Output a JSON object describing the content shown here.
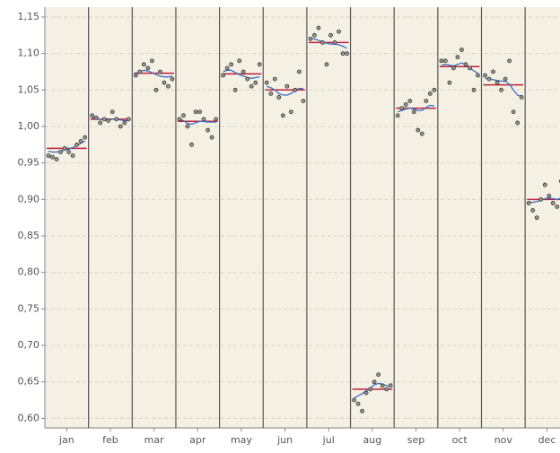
{
  "chart_data": {
    "type": "subseries",
    "categories": [
      "jan",
      "feb",
      "mar",
      "apr",
      "may",
      "jun",
      "jul",
      "aug",
      "sep",
      "oct",
      "nov",
      "dec"
    ],
    "ylim": [
      0.587,
      1.161
    ],
    "yticks": [
      {
        "value": 0.6,
        "label": "0,60"
      },
      {
        "value": 0.65,
        "label": "0,65"
      },
      {
        "value": 0.7,
        "label": "0,70"
      },
      {
        "value": 0.75,
        "label": "0,75"
      },
      {
        "value": 0.8,
        "label": "0,80"
      },
      {
        "value": 0.85,
        "label": "0,85"
      },
      {
        "value": 0.9,
        "label": "0,90"
      },
      {
        "value": 0.95,
        "label": "0,95"
      },
      {
        "value": 1.0,
        "label": "1,00"
      },
      {
        "value": 1.05,
        "label": "1,05"
      },
      {
        "value": 1.1,
        "label": "1,10"
      },
      {
        "value": 1.15,
        "label": "1,15"
      }
    ],
    "grid": true,
    "point_color": "#9a9a90",
    "mean_color": "#c0203a",
    "smooth_color": "#3a6fc8",
    "points": [
      [
        0.96,
        0.958,
        0.955,
        0.965,
        0.97,
        0.965,
        0.96,
        0.975,
        0.98,
        0.985
      ],
      [
        1.015,
        1.012,
        1.005,
        1.01,
        1.008,
        1.02,
        1.01,
        1.0,
        1.005,
        1.01
      ],
      [
        1.07,
        1.075,
        1.085,
        1.08,
        1.09,
        1.05,
        1.075,
        1.06,
        1.055,
        1.065
      ],
      [
        1.01,
        1.015,
        1.0,
        0.975,
        1.02,
        1.02,
        1.01,
        0.995,
        0.985,
        1.01
      ],
      [
        1.07,
        1.08,
        1.085,
        1.05,
        1.09,
        1.075,
        1.065,
        1.055,
        1.06,
        1.085
      ],
      [
        1.06,
        1.045,
        1.065,
        1.04,
        1.015,
        1.055,
        1.02,
        1.05,
        1.075,
        1.035
      ],
      [
        1.12,
        1.125,
        1.135,
        1.115,
        1.085,
        1.125,
        1.115,
        1.13,
        1.1,
        1.1
      ],
      [
        0.625,
        0.62,
        0.61,
        0.635,
        0.64,
        0.65,
        0.66,
        0.645,
        0.64,
        0.645
      ],
      [
        1.015,
        1.025,
        1.03,
        1.035,
        1.02,
        0.995,
        0.99,
        1.035,
        1.045,
        1.05
      ],
      [
        1.09,
        1.09,
        1.06,
        1.08,
        1.095,
        1.105,
        1.085,
        1.08,
        1.05,
        1.07
      ],
      [
        1.07,
        1.065,
        1.075,
        1.06,
        1.05,
        1.065,
        1.09,
        1.02,
        1.005,
        1.04
      ],
      [
        0.895,
        0.885,
        0.875,
        0.9,
        0.92,
        0.905,
        0.895,
        0.89,
        0.925,
        0.9
      ]
    ],
    "means": [
      0.97,
      1.01,
      1.073,
      1.007,
      1.072,
      1.05,
      1.115,
      0.64,
      1.025,
      1.082,
      1.057,
      0.9
    ],
    "smooth": [
      [
        0.966,
        0.965,
        0.965,
        0.966,
        0.968,
        0.969,
        0.971,
        0.974,
        0.977,
        0.98
      ],
      [
        1.012,
        1.011,
        1.01,
        1.009,
        1.009,
        1.01,
        1.01,
        1.009,
        1.008,
        1.008
      ],
      [
        1.073,
        1.075,
        1.077,
        1.076,
        1.074,
        1.071,
        1.069,
        1.068,
        1.068,
        1.069
      ],
      [
        1.01,
        1.008,
        1.004,
        1.003,
        1.005,
        1.007,
        1.007,
        1.006,
        1.006,
        1.006
      ],
      [
        1.075,
        1.077,
        1.077,
        1.074,
        1.071,
        1.069,
        1.067,
        1.066,
        1.067,
        1.068
      ],
      [
        1.055,
        1.053,
        1.05,
        1.045,
        1.043,
        1.043,
        1.045,
        1.05,
        1.052,
        1.052
      ],
      [
        1.121,
        1.12,
        1.118,
        1.116,
        1.114,
        1.113,
        1.113,
        1.112,
        1.11,
        1.107
      ],
      [
        0.628,
        0.631,
        0.634,
        0.638,
        0.642,
        0.646,
        0.648,
        0.647,
        0.645,
        0.644
      ],
      [
        1.02,
        1.022,
        1.024,
        1.025,
        1.024,
        1.022,
        1.022,
        1.026,
        1.029,
        1.028
      ],
      [
        1.084,
        1.085,
        1.084,
        1.083,
        1.085,
        1.087,
        1.085,
        1.081,
        1.076,
        1.073
      ],
      [
        1.066,
        1.065,
        1.064,
        1.063,
        1.062,
        1.062,
        1.058,
        1.05,
        1.043,
        1.041
      ],
      [
        0.896,
        0.896,
        0.897,
        0.899,
        0.901,
        0.902,
        0.901,
        0.9,
        0.902,
        0.905
      ]
    ]
  }
}
